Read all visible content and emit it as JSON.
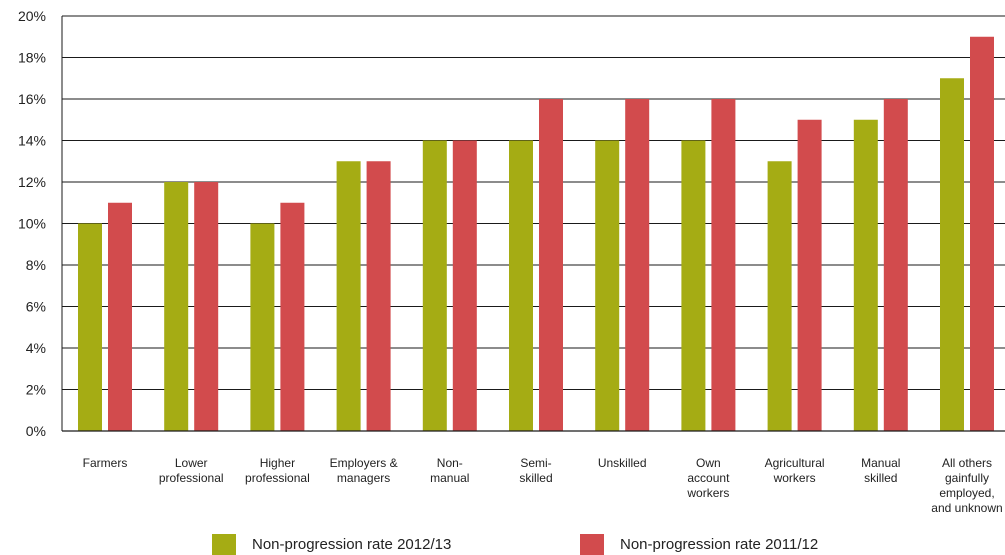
{
  "chart_data": {
    "type": "bar",
    "title": "",
    "xlabel": "",
    "ylabel": "",
    "ylim": [
      0,
      20
    ],
    "yticks": [
      "0%",
      "2%",
      "4%",
      "6%",
      "8%",
      "10%",
      "12%",
      "14%",
      "16%",
      "18%",
      "20%"
    ],
    "grid": true,
    "legend_position": "bottom",
    "categories": [
      [
        "Farmers"
      ],
      [
        "Lower",
        "professional"
      ],
      [
        "Higher",
        "professional"
      ],
      [
        "Employers &",
        "managers"
      ],
      [
        "Non-",
        "manual"
      ],
      [
        "Semi-",
        "skilled"
      ],
      [
        "Unskilled"
      ],
      [
        "Own",
        "account",
        "workers"
      ],
      [
        "Agricultural",
        "workers"
      ],
      [
        "Manual",
        "skilled"
      ],
      [
        "All others",
        "gainfully",
        "employed,",
        "and unknown"
      ]
    ],
    "series": [
      {
        "name": "Non-progression rate 2012/13",
        "color": "#a5ac14",
        "values": [
          10,
          12,
          10,
          13,
          14,
          14,
          14,
          14,
          13,
          15,
          17
        ]
      },
      {
        "name": "Non-progression rate 2011/12",
        "color": "#d24b4d",
        "values": [
          11,
          12,
          11,
          13,
          14,
          16,
          16,
          16,
          15,
          16,
          19
        ]
      }
    ]
  }
}
